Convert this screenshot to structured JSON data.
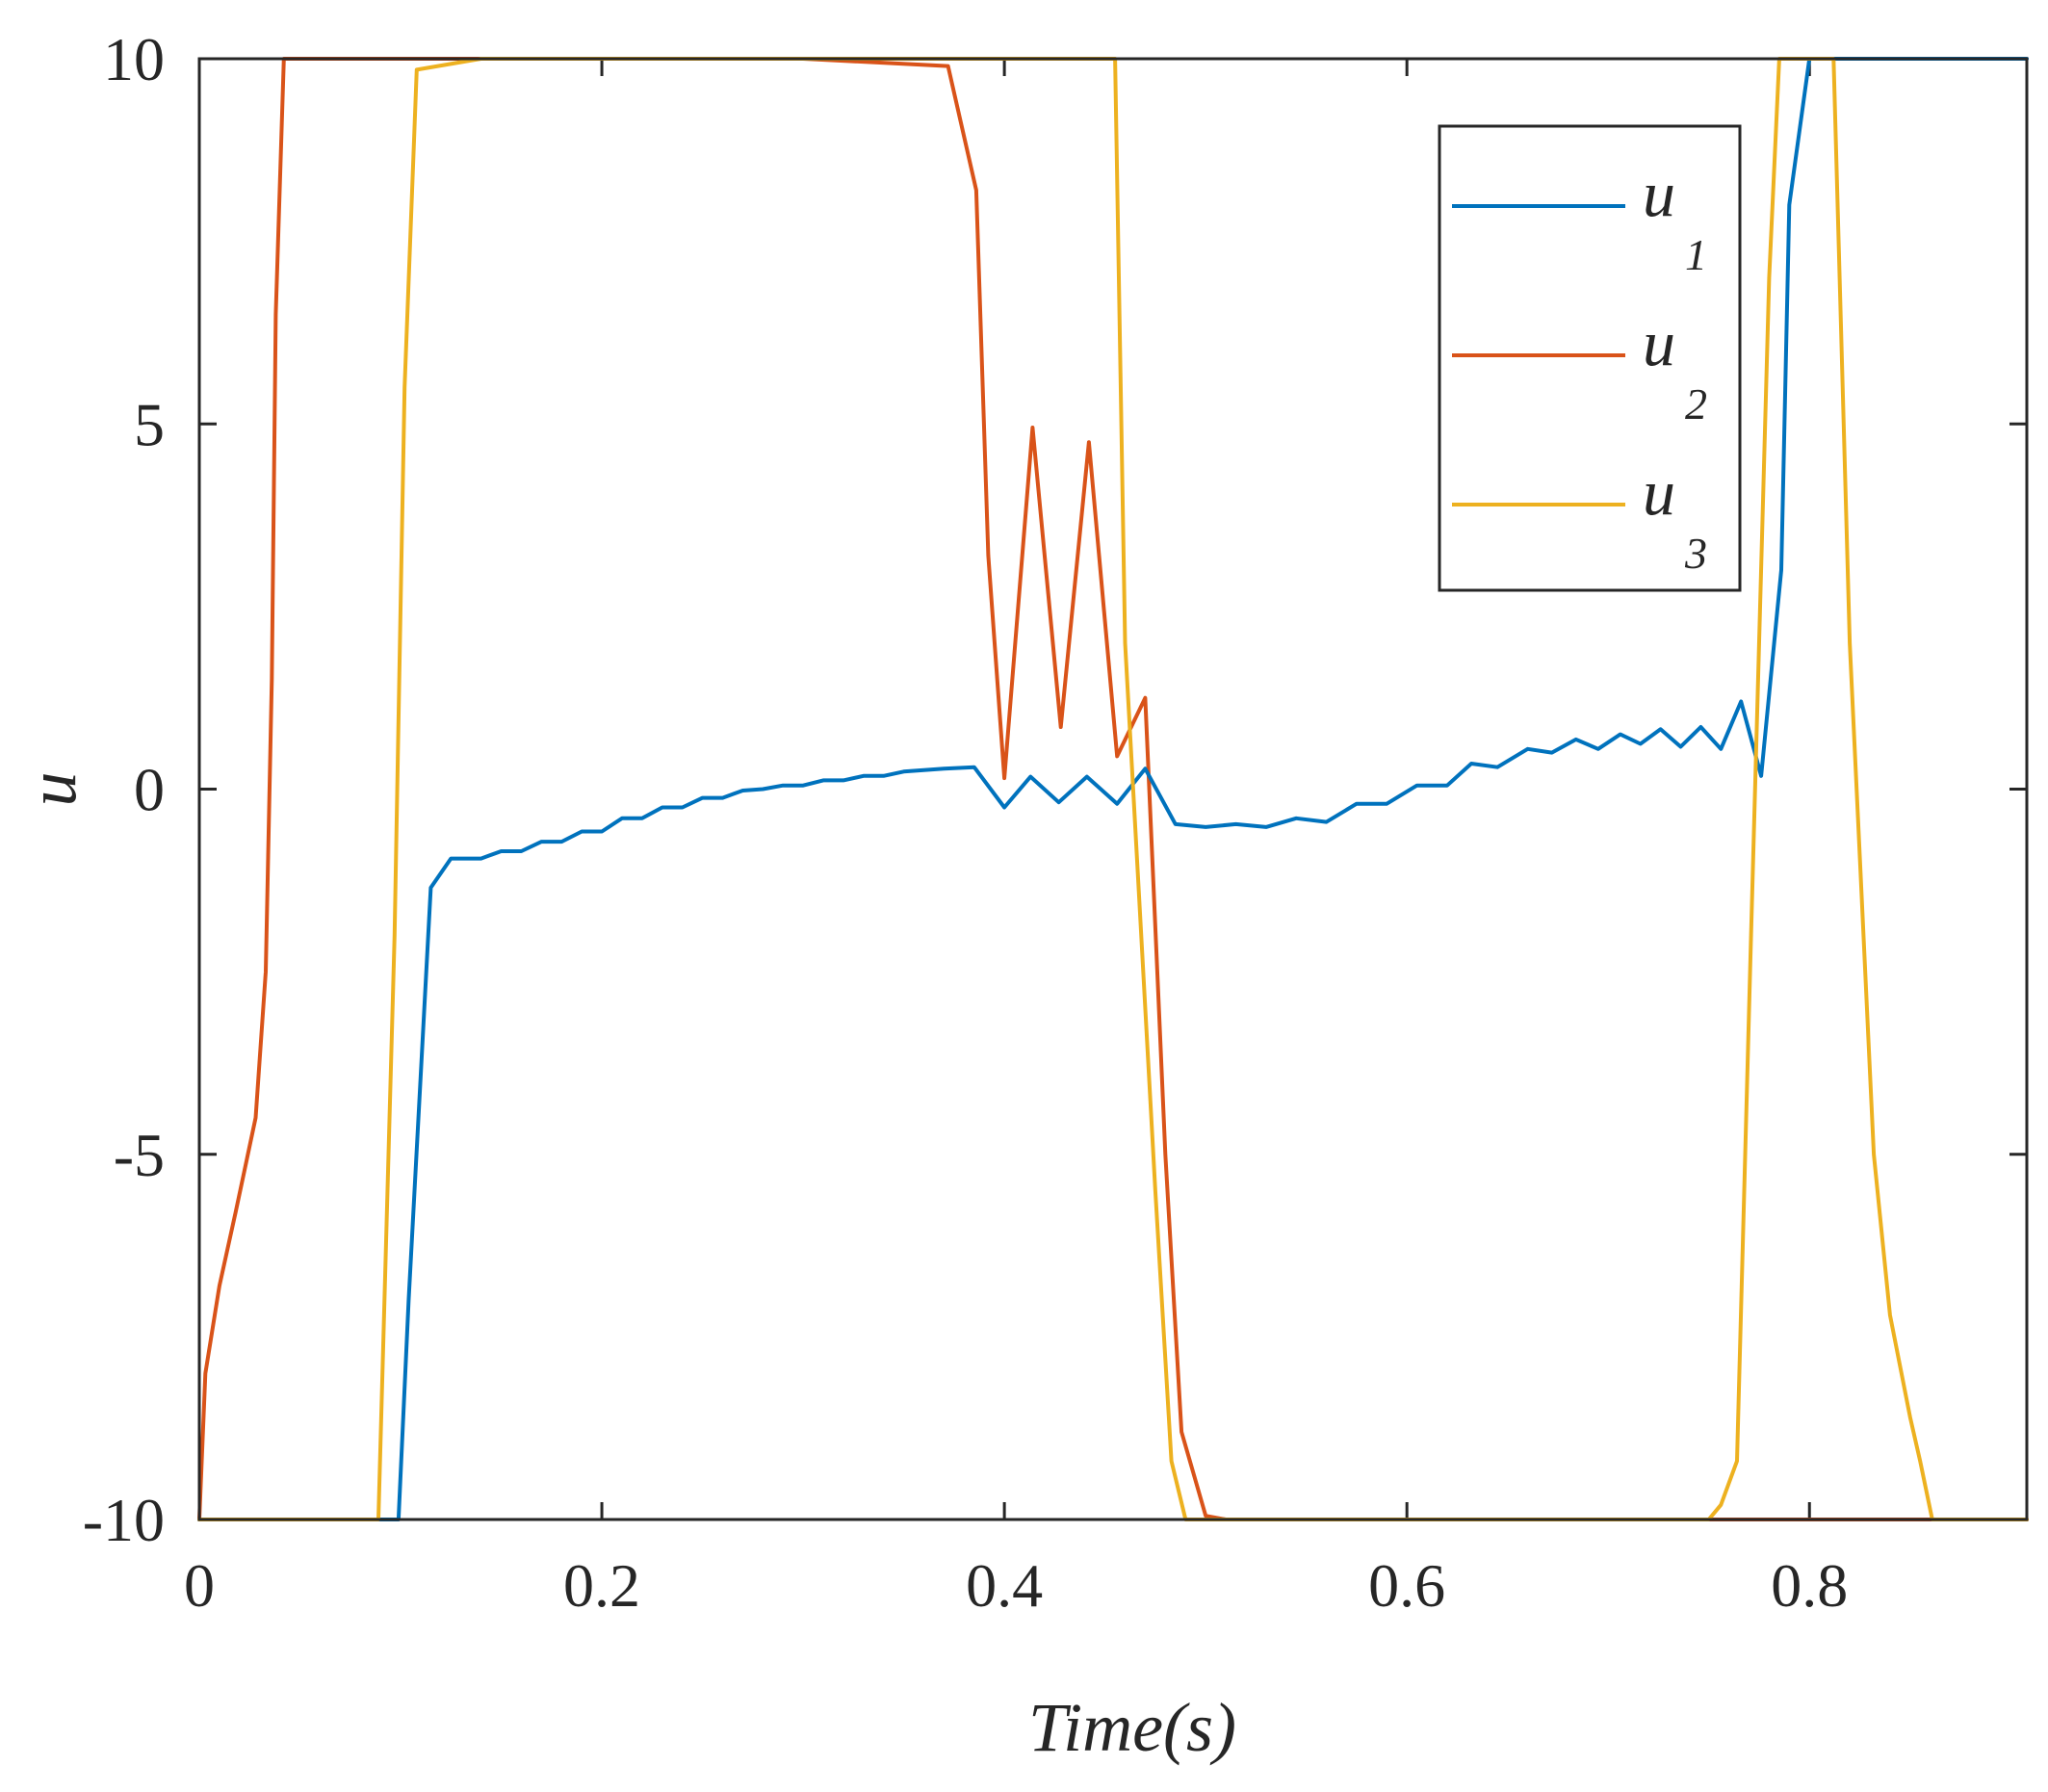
{
  "chart_data": {
    "type": "line",
    "title": "",
    "xlabel": "Time(s)",
    "ylabel": "u",
    "xlim": [
      0,
      0.908
    ],
    "ylim": [
      -10,
      10
    ],
    "xticks": [
      0,
      0.2,
      0.4,
      0.6,
      0.8
    ],
    "xtick_labels": [
      "0",
      "0.2",
      "0.4",
      "0.6",
      "0.8"
    ],
    "yticks": [
      -10,
      -5,
      0,
      5,
      10
    ],
    "ytick_labels": [
      "-10",
      "-5",
      "0",
      "5",
      "10"
    ],
    "legend_position": "top-right",
    "series": [
      {
        "name": "u",
        "subscript": "1",
        "color": "#0072BD",
        "x": [
          0,
          0.099,
          0.104,
          0.115,
          0.125,
          0.14,
          0.15,
          0.16,
          0.17,
          0.18,
          0.19,
          0.2,
          0.21,
          0.22,
          0.23,
          0.24,
          0.25,
          0.26,
          0.27,
          0.28,
          0.29,
          0.3,
          0.31,
          0.32,
          0.33,
          0.34,
          0.35,
          0.36,
          0.37,
          0.385,
          0.4,
          0.413,
          0.427,
          0.441,
          0.456,
          0.47,
          0.485,
          0.5,
          0.515,
          0.53,
          0.545,
          0.56,
          0.575,
          0.59,
          0.605,
          0.62,
          0.632,
          0.645,
          0.66,
          0.672,
          0.684,
          0.695,
          0.706,
          0.716,
          0.726,
          0.736,
          0.746,
          0.756,
          0.766,
          0.776,
          0.786,
          0.79,
          0.8,
          0.81,
          0.908
        ],
        "values": [
          -10,
          -10,
          -7,
          -1.35,
          -0.95,
          -0.95,
          -0.85,
          -0.85,
          -0.72,
          -0.72,
          -0.58,
          -0.58,
          -0.4,
          -0.4,
          -0.25,
          -0.25,
          -0.12,
          -0.12,
          -0.02,
          0.0,
          0.05,
          0.05,
          0.12,
          0.12,
          0.18,
          0.18,
          0.24,
          0.26,
          0.28,
          0.3,
          -0.25,
          0.17,
          -0.18,
          0.17,
          -0.2,
          0.28,
          -0.48,
          -0.52,
          -0.48,
          -0.52,
          -0.4,
          -0.45,
          -0.2,
          -0.2,
          0.05,
          0.05,
          0.35,
          0.3,
          0.55,
          0.5,
          0.68,
          0.55,
          0.75,
          0.62,
          0.82,
          0.58,
          0.85,
          0.55,
          1.2,
          0.18,
          3.0,
          8.0,
          10,
          10,
          10
        ]
      },
      {
        "name": "u",
        "subscript": "2",
        "color": "#D95319",
        "x": [
          0,
          0.003,
          0.01,
          0.018,
          0.028,
          0.033,
          0.036,
          0.038,
          0.042,
          0.1,
          0.2,
          0.3,
          0.372,
          0.386,
          0.392,
          0.4,
          0.414,
          0.428,
          0.442,
          0.456,
          0.47,
          0.48,
          0.488,
          0.5,
          0.51,
          0.6,
          0.7,
          0.8,
          0.908
        ],
        "values": [
          -10,
          -8,
          -6.8,
          -5.8,
          -4.5,
          -2.5,
          1.5,
          6.5,
          10,
          10,
          10,
          10,
          9.9,
          8.2,
          3.2,
          0.15,
          4.95,
          0.85,
          4.75,
          0.45,
          1.25,
          -5,
          -8.8,
          -9.95,
          -10,
          -10,
          -10,
          -10,
          -10
        ]
      },
      {
        "name": "u",
        "subscript": "3",
        "color": "#EDB120",
        "x": [
          0,
          0.089,
          0.097,
          0.102,
          0.108,
          0.14,
          0.3,
          0.455,
          0.46,
          0.475,
          0.483,
          0.49,
          0.6,
          0.7,
          0.75,
          0.756,
          0.764,
          0.771,
          0.78,
          0.785,
          0.812,
          0.82,
          0.832,
          0.84,
          0.85,
          0.855,
          0.861,
          0.908
        ],
        "values": [
          -10,
          -10,
          -2,
          5.5,
          9.85,
          10,
          10,
          10,
          2,
          -5.5,
          -9.2,
          -10,
          -10,
          -10,
          -10,
          -9.8,
          -9.2,
          -2,
          7,
          10,
          10,
          2,
          -5,
          -7.2,
          -8.6,
          -9.2,
          -10,
          -10
        ]
      }
    ]
  }
}
